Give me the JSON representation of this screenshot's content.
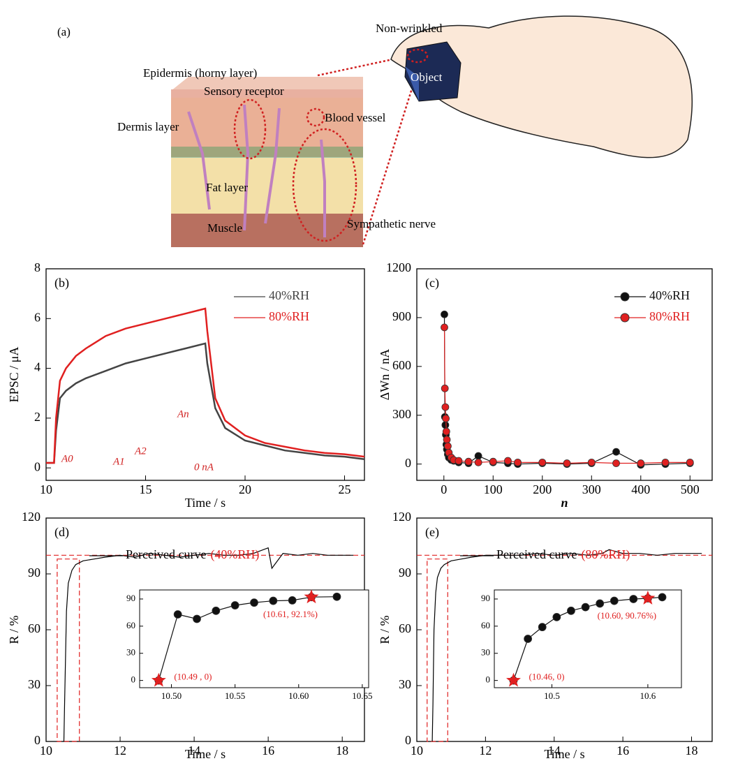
{
  "figure_a": {
    "label": "(a)",
    "texts": [
      "Non-wrinkled",
      "Epidermis (horny layer)",
      "Sensory receptor",
      "Blood vessel",
      "Dermis layer",
      "Fat layer",
      "Muscle",
      "Sympathetic nerve",
      "Object"
    ]
  },
  "chart_data": [
    {
      "type": "line",
      "panel": "(b)",
      "xlabel": "Time / s",
      "ylabel": "EPSC / μA",
      "xlim": [
        10,
        26
      ],
      "ylim": [
        -0.5,
        8
      ],
      "xticks": [
        10,
        15,
        20,
        25
      ],
      "yticks": [
        0,
        2,
        4,
        6,
        8
      ],
      "legend": "upper right",
      "series": [
        {
          "name": "40%RH",
          "color": "#444444",
          "x": [
            10,
            10.4,
            10.5,
            10.7,
            11,
            11.5,
            12,
            13,
            14,
            15,
            16,
            17,
            18,
            18.1,
            18.5,
            19,
            20,
            21,
            22,
            23,
            24,
            25,
            26
          ],
          "values": [
            0.2,
            0.2,
            1.5,
            2.8,
            3.1,
            3.4,
            3.6,
            3.9,
            4.2,
            4.4,
            4.6,
            4.8,
            5.0,
            4.2,
            2.4,
            1.6,
            1.1,
            0.9,
            0.7,
            0.6,
            0.5,
            0.45,
            0.35
          ]
        },
        {
          "name": "80%RH",
          "color": "#e02020",
          "x": [
            10,
            10.4,
            10.5,
            10.7,
            11,
            11.5,
            12,
            13,
            14,
            15,
            16,
            17,
            18,
            18.1,
            18.5,
            19,
            20,
            21,
            22,
            23,
            24,
            25,
            26
          ],
          "values": [
            0.2,
            0.2,
            2.0,
            3.5,
            4.0,
            4.5,
            4.8,
            5.3,
            5.6,
            5.8,
            6.0,
            6.2,
            6.4,
            5.5,
            2.8,
            1.9,
            1.3,
            1.0,
            0.85,
            0.7,
            0.6,
            0.55,
            0.45
          ]
        }
      ],
      "annotations": [
        "A0",
        "A1",
        "A2",
        "An",
        "0 nA"
      ]
    },
    {
      "type": "scatter",
      "panel": "(c)",
      "xlabel": "n",
      "ylabel": "ΔWn / nA",
      "connect": true,
      "xlim": [
        -55,
        545
      ],
      "ylim": [
        -100,
        1200
      ],
      "xticks": [
        0,
        100,
        200,
        300,
        400,
        500
      ],
      "yticks": [
        0,
        300,
        600,
        900,
        1200
      ],
      "legend": "upper right",
      "series": [
        {
          "name": "40%RH",
          "color": "#111111",
          "x": [
            1,
            2,
            3,
            4,
            5,
            6,
            8,
            10,
            15,
            20,
            30,
            50,
            70,
            100,
            130,
            150,
            200,
            250,
            300,
            350,
            400,
            450,
            500
          ],
          "values": [
            920,
            290,
            240,
            180,
            120,
            90,
            60,
            40,
            25,
            20,
            10,
            5,
            50,
            10,
            5,
            0,
            5,
            0,
            5,
            75,
            -5,
            0,
            5
          ]
        },
        {
          "name": "80%RH",
          "color": "#e02020",
          "x": [
            1,
            2,
            3,
            4,
            5,
            6,
            8,
            10,
            15,
            20,
            30,
            50,
            70,
            100,
            130,
            150,
            200,
            250,
            300,
            350,
            400,
            450,
            500
          ],
          "values": [
            840,
            465,
            350,
            280,
            200,
            150,
            110,
            70,
            40,
            25,
            20,
            15,
            10,
            15,
            20,
            10,
            10,
            5,
            10,
            5,
            5,
            10,
            10
          ]
        }
      ]
    },
    {
      "type": "line",
      "panel": "(d)",
      "xlabel": "Time / s",
      "ylabel": "R / %",
      "xlim": [
        10,
        18.6
      ],
      "ylim": [
        0,
        120
      ],
      "xticks": [
        10,
        12,
        14,
        16,
        18
      ],
      "yticks": [
        0,
        30,
        60,
        90,
        120
      ],
      "series": [
        {
          "name": "Perceived curve",
          "color": "#000000",
          "x": [
            10.48,
            10.5,
            10.55,
            10.6,
            10.7,
            10.8,
            11,
            11.3,
            11.6,
            12,
            12.4,
            12.8,
            13.2,
            13.6,
            14,
            14.4,
            14.8,
            15.2,
            15.6,
            16,
            16.1,
            16.4,
            16.8,
            17.2,
            17.6,
            18,
            18.3
          ],
          "values": [
            0,
            20,
            70,
            85,
            92,
            95,
            97,
            98,
            99,
            100,
            99,
            101,
            100,
            99,
            100,
            101,
            100,
            100,
            101,
            104,
            93,
            101,
            100,
            101,
            100,
            100,
            100
          ]
        }
      ],
      "condition": "(40%RH)",
      "condition_color": "#e02020",
      "reference_line": 100,
      "zoom_box": {
        "x": [
          10.3,
          10.9
        ],
        "y": [
          0,
          98
        ]
      },
      "inset": {
        "type": "scatter",
        "connect": true,
        "xlim": [
          10.475,
          10.655
        ],
        "ylim": [
          -8,
          100
        ],
        "xticks": [
          {
            "value": 10.5,
            "label": "10.50"
          },
          10.55,
          {
            "value": 10.6,
            "label": "10.60"
          },
          10.65
        ],
        "yticks": [
          0,
          30,
          60,
          90
        ],
        "series": [
          {
            "color": "#111111",
            "x": [
              10.49,
              10.505,
              10.52,
              10.535,
              10.55,
              10.565,
              10.58,
              10.595,
              10.61,
              10.63
            ],
            "values": [
              0,
              73,
              68,
              77,
              83,
              86,
              88,
              88.5,
              92.1,
              92.5
            ]
          }
        ],
        "stars": [
          0,
          8
        ],
        "star_labels": [
          "(10.49 , 0)",
          "(10.61, 92.1%)"
        ],
        "star_color": "#e02020"
      }
    },
    {
      "type": "line",
      "panel": "(e)",
      "xlabel": "Time / s",
      "ylabel": "R / %",
      "xlim": [
        10,
        18.6
      ],
      "ylim": [
        0,
        120
      ],
      "xticks": [
        10,
        12,
        14,
        16,
        18
      ],
      "yticks": [
        0,
        30,
        60,
        90,
        120
      ],
      "series": [
        {
          "name": "Perceived curve",
          "color": "#000000",
          "x": [
            10.45,
            10.47,
            10.5,
            10.55,
            10.6,
            10.7,
            10.8,
            11,
            11.3,
            11.6,
            12,
            12.5,
            13,
            13.5,
            14,
            14.5,
            15,
            15.4,
            15.6,
            16,
            16.5,
            17,
            17.5,
            18,
            18.3
          ],
          "values": [
            0,
            20,
            60,
            80,
            88,
            93,
            95,
            97,
            98,
            99,
            100,
            100,
            100,
            101,
            100,
            101,
            100,
            101,
            103,
            101,
            101,
            100,
            101,
            101,
            101
          ]
        }
      ],
      "condition": "(80%RH)",
      "condition_color": "#e02020",
      "reference_line": 100,
      "zoom_box": {
        "x": [
          10.3,
          10.9
        ],
        "y": [
          0,
          98
        ]
      },
      "inset": {
        "type": "scatter",
        "connect": true,
        "xlim": [
          10.44,
          10.635
        ],
        "ylim": [
          -8,
          100
        ],
        "xticks": [
          10.5,
          10.6
        ],
        "yticks": [
          0,
          30,
          60,
          90
        ],
        "series": [
          {
            "color": "#111111",
            "x": [
              10.46,
              10.475,
              10.49,
              10.505,
              10.52,
              10.535,
              10.55,
              10.565,
              10.585,
              10.6,
              10.615
            ],
            "values": [
              0,
              46,
              59,
              70,
              77,
              81,
              85,
              88,
              90,
              90.76,
              92
            ]
          }
        ],
        "stars": [
          0,
          9
        ],
        "star_labels": [
          "(10.46, 0)",
          "(10.60, 90.76%)"
        ],
        "star_color": "#e02020"
      }
    }
  ]
}
